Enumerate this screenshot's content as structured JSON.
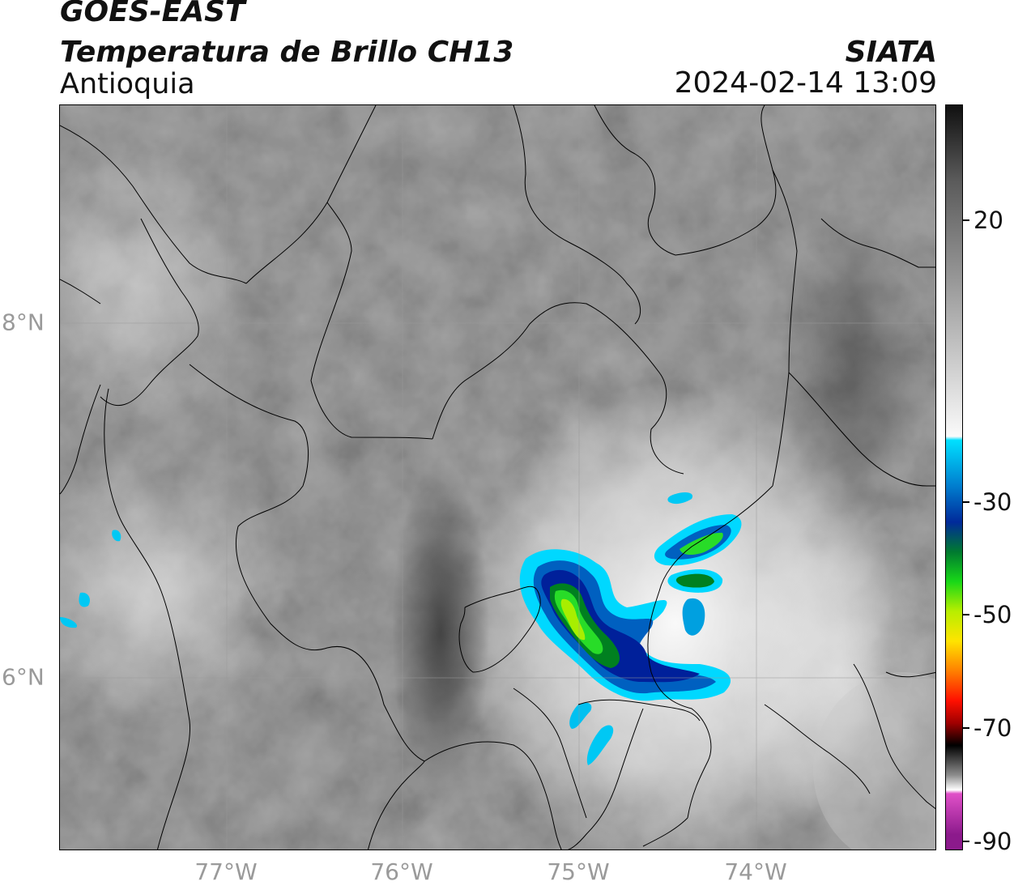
{
  "header": {
    "title": "GOES-EAST",
    "subtitle": "Temperatura de Brillo CH13",
    "region": "Antioquia",
    "organization": "SIATA",
    "datetime": "2024-02-14 13:09"
  },
  "map": {
    "lat_labels": [
      {
        "value": 8,
        "label": "8°N"
      },
      {
        "value": 6,
        "label": "6°N"
      }
    ],
    "lon_labels": [
      {
        "value": -77,
        "label": "77°W"
      },
      {
        "value": -76,
        "label": "76°W"
      },
      {
        "value": -75,
        "label": "75°W"
      },
      {
        "value": -74,
        "label": "74°W"
      }
    ],
    "gridlines": true
  },
  "colorbar": {
    "ticks": [
      {
        "value": 20,
        "label": "20"
      },
      {
        "value": -30,
        "label": "-30"
      },
      {
        "value": -50,
        "label": "-50"
      },
      {
        "value": -70,
        "label": "-70"
      },
      {
        "value": -90,
        "label": "-90"
      }
    ],
    "colors": [
      "#101010",
      "#5a5a5a",
      "#9a9a9a",
      "#dcdcdc",
      "#fafafa",
      "#00e0ff",
      "#0080d0",
      "#002a9a",
      "#007a30",
      "#18d818",
      "#b8ee00",
      "#ffe400",
      "#ff8000",
      "#ff1000",
      "#a00000",
      "#000000",
      "#8c8c8c",
      "#ffffff",
      "#e050c8",
      "#8c1a8c"
    ]
  }
}
